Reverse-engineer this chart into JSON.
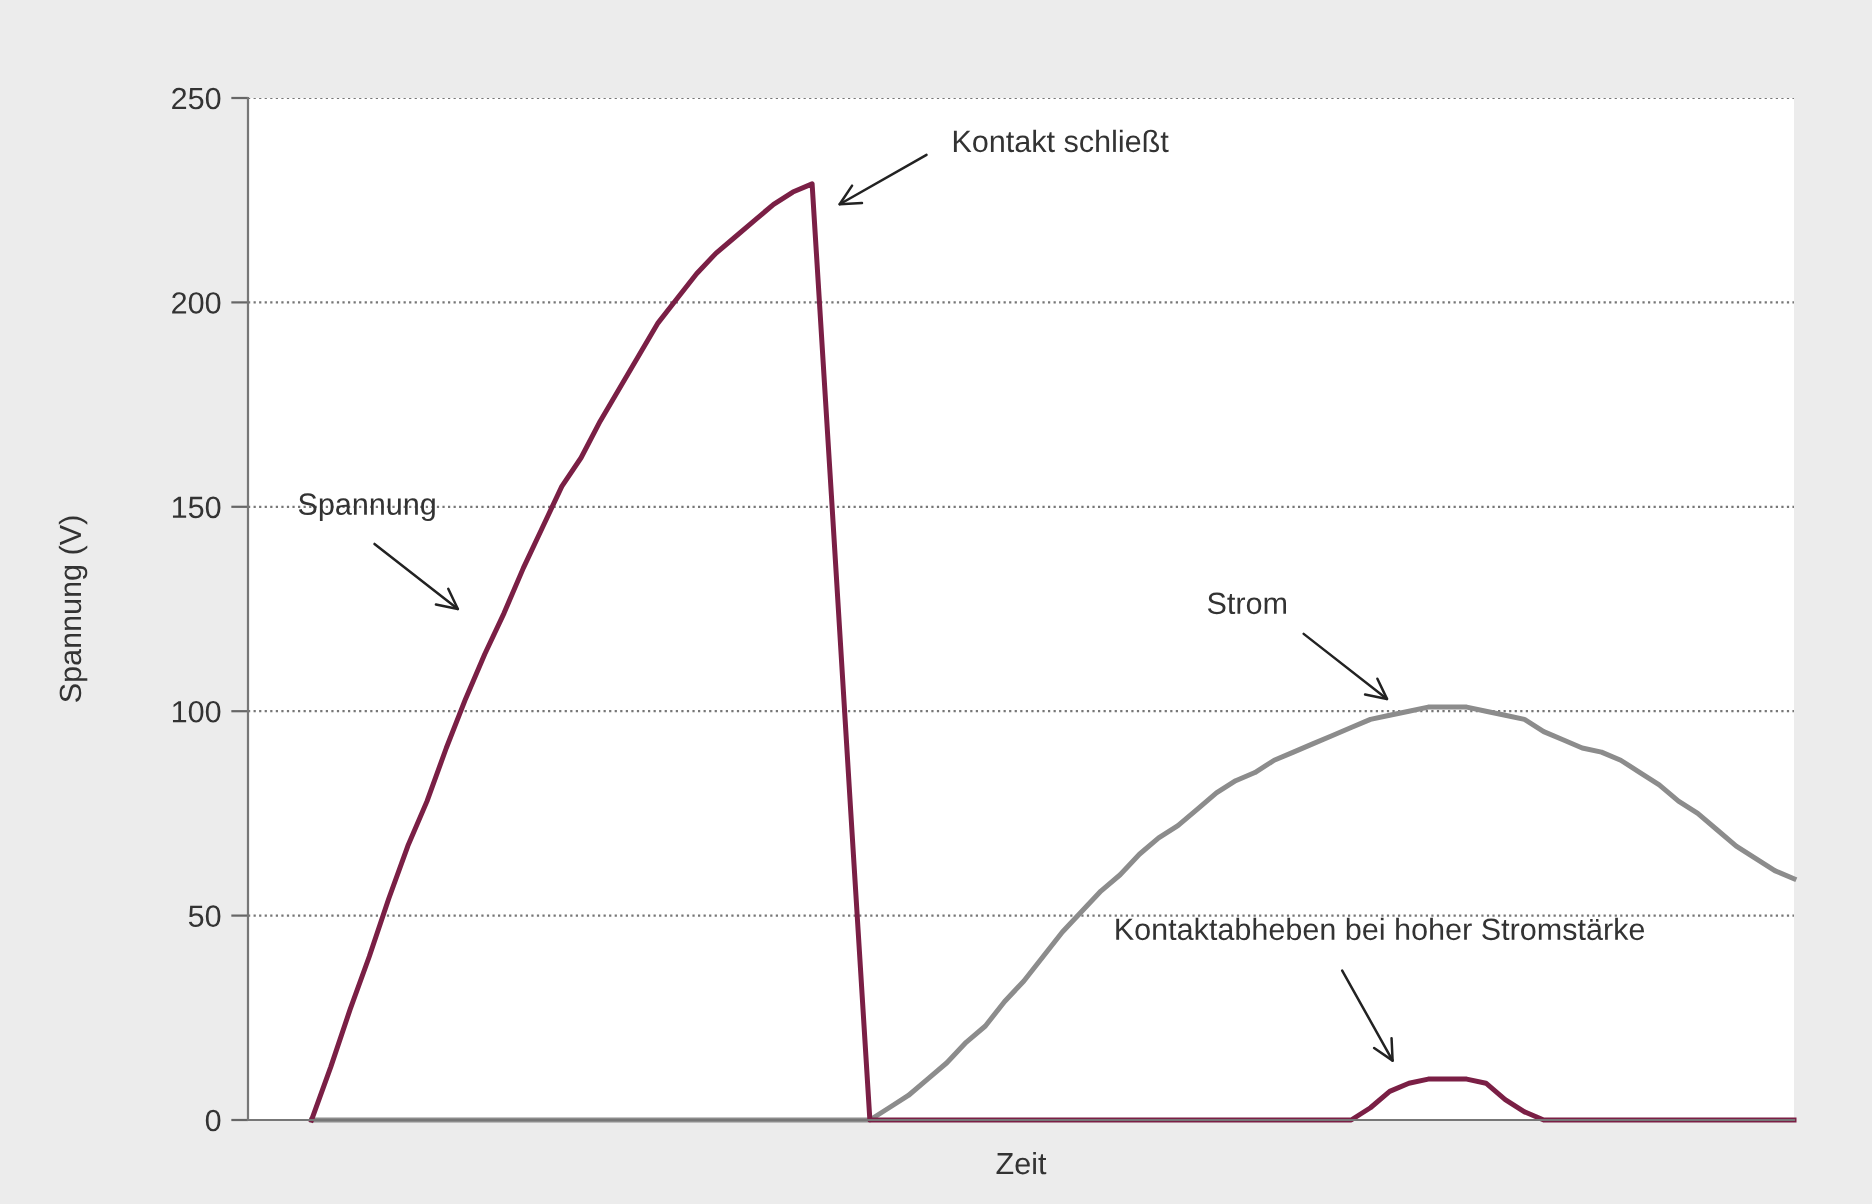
{
  "chart_data": {
    "type": "line",
    "xlabel": "Zeit",
    "ylabel": "Spannung (V)",
    "ylim": [
      0,
      250
    ],
    "yticks": [
      0,
      50,
      100,
      150,
      200,
      250
    ],
    "grid": "y",
    "line_style": "solid",
    "marker": "none",
    "legend": false,
    "categories": [
      null,
      null,
      null,
      null,
      null,
      null,
      null,
      null,
      null,
      null,
      null,
      null,
      null,
      null,
      null,
      null,
      null,
      null,
      null,
      null,
      null,
      null,
      null,
      null,
      null,
      null,
      null,
      null,
      null,
      null,
      null,
      null,
      null,
      null,
      null,
      null,
      null,
      null,
      null,
      null,
      null,
      null,
      null,
      null,
      null,
      null,
      null,
      null,
      null,
      null,
      null,
      null,
      null,
      null,
      null,
      null,
      null,
      null,
      null,
      null,
      null,
      null,
      null,
      null,
      null,
      null,
      null,
      null,
      null,
      null,
      null,
      null,
      null,
      null,
      null,
      null,
      null,
      null,
      null,
      null,
      null
    ],
    "series": [
      {
        "color": "#8c8c8c",
        "values": [
          null,
          null,
          null,
          0,
          0,
          0,
          0,
          0,
          0,
          0,
          0,
          0,
          0,
          0,
          0,
          0,
          0,
          0,
          0,
          0,
          0,
          0,
          0,
          0,
          0,
          0,
          0,
          0,
          0,
          0,
          0,
          0,
          0,
          3,
          6,
          10,
          14,
          19,
          23,
          29,
          34,
          40,
          46,
          51,
          56,
          60,
          65,
          69,
          72,
          76,
          80,
          83,
          85,
          88,
          90,
          92,
          94,
          96,
          98,
          99,
          100,
          101,
          101,
          101,
          100,
          99,
          98,
          95,
          93,
          91,
          90,
          88,
          85,
          82,
          78,
          75,
          71,
          67,
          64,
          61,
          59
        ]
      },
      {
        "color": "#7a1f45",
        "values": [
          null,
          null,
          null,
          0,
          13,
          27,
          40,
          54,
          67,
          78,
          91,
          103,
          114,
          124,
          135,
          145,
          155,
          162,
          171,
          179,
          187,
          195,
          201,
          207,
          212,
          216,
          220,
          224,
          227,
          229,
          153,
          76,
          0,
          0,
          0,
          0,
          0,
          0,
          0,
          0,
          0,
          0,
          0,
          0,
          0,
          0,
          0,
          0,
          0,
          0,
          0,
          0,
          0,
          0,
          0,
          0,
          0,
          0,
          3,
          7,
          9,
          10,
          10,
          10,
          9,
          5,
          2,
          0,
          0,
          0,
          0,
          0,
          0,
          0,
          0,
          0,
          0,
          0,
          0,
          0,
          0
        ]
      }
    ],
    "annotations": [
      "Kontakt schließt",
      "Spannung",
      "Strom",
      "Kontaktabheben bei hoher Stromstärke"
    ]
  }
}
